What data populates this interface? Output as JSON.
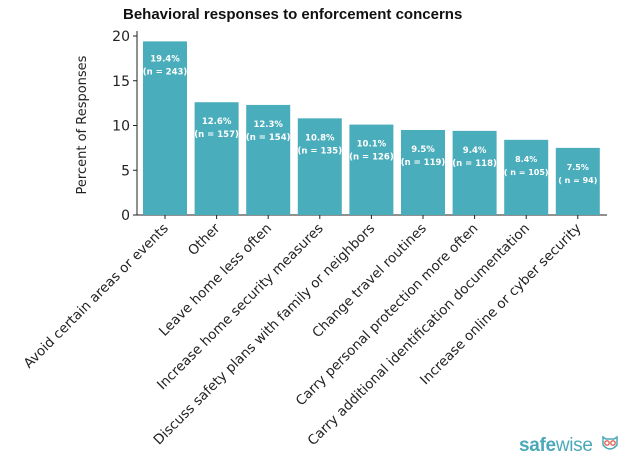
{
  "chart_data": {
    "type": "bar",
    "title": "Behavioral responses to enforcement concerns",
    "xlabel": "",
    "ylabel": "Percent of Responses",
    "ylim": [
      0,
      20
    ],
    "yticks": [
      0,
      5,
      10,
      15,
      20
    ],
    "grid": false,
    "categories": [
      "Avoid certain areas or events",
      "Other",
      "Leave home less often",
      "Increase home security measures",
      "Discuss safety plans with family or neighbors",
      "Change travel routines",
      "Carry personal protection more often",
      "Carry additional identification documentation",
      "Increase online or cyber security"
    ],
    "values": [
      19.4,
      12.6,
      12.3,
      10.8,
      10.1,
      9.5,
      9.4,
      8.4,
      7.5
    ],
    "data_labels": [
      "19.4%",
      "12.6%",
      "12.3%",
      "10.8%",
      "10.1%",
      "9.5%",
      "9.4%",
      "8.4%",
      "7.5%"
    ],
    "n_labels": [
      "(n = 243)",
      "(n = 157)",
      "(n = 154)",
      "(n = 135)",
      "(n = 126)",
      "(n = 119)",
      "(n = 118)",
      "( n = 105)",
      "( n = 94)"
    ],
    "bar_color": "#4aadbb"
  },
  "brand": {
    "logo_text_a": "safe",
    "logo_text_b": "wise"
  }
}
